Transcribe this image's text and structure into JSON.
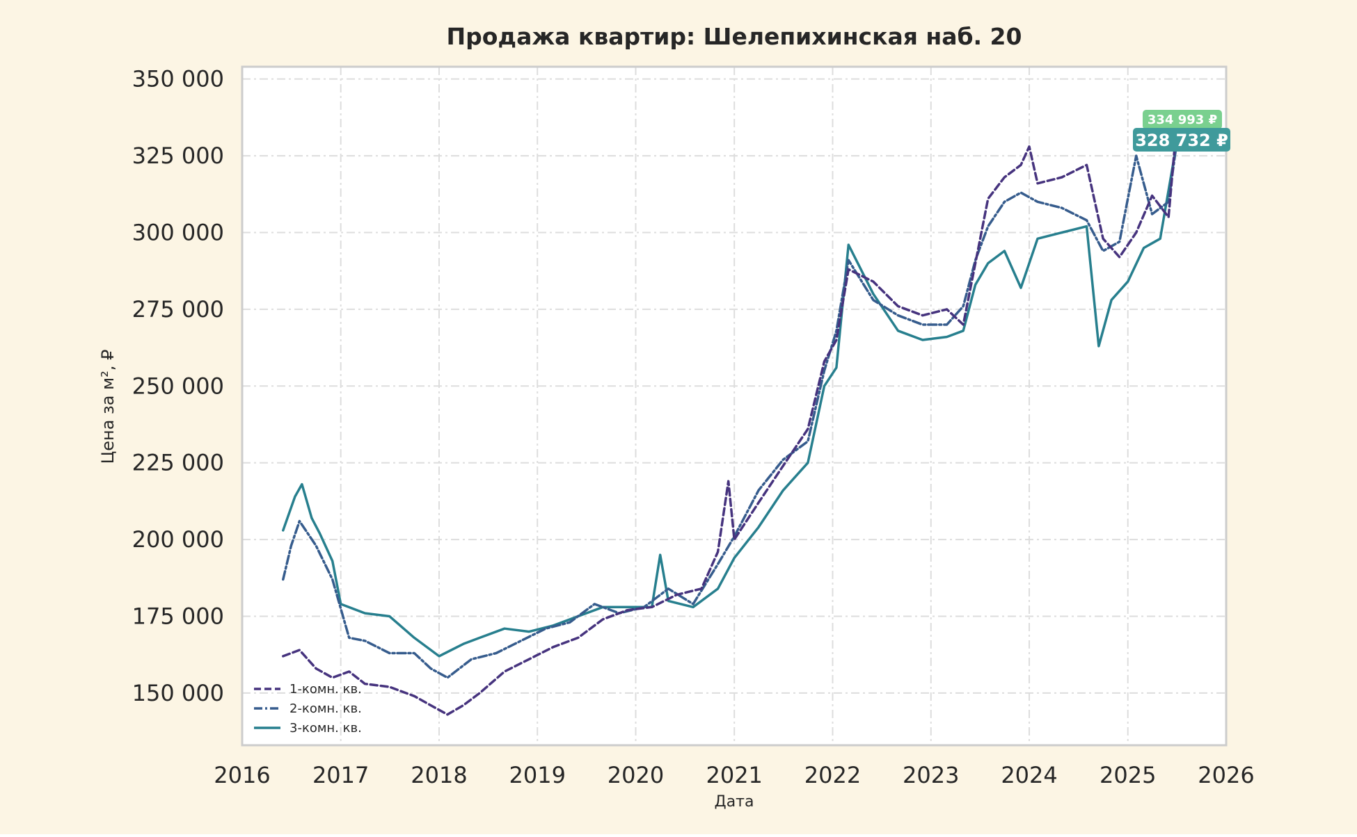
{
  "colors": {
    "page_bg": "#fcf5e4",
    "plot_bg": "#ffffff",
    "frame": "#cccccc",
    "grid": "#dddddd",
    "text": "#262626",
    "series_1": "#46337e",
    "series_2": "#365c8d",
    "series_3": "#277f8e",
    "badge_top": "#7ad08f",
    "badge_main": "#3f9a9b"
  },
  "chart_data": {
    "type": "line",
    "title": "Продажа квартир: Шелепихинская наб. 20",
    "xlabel": "Дата",
    "ylabel": "Цена за м², ₽",
    "xlim": [
      "2016-01-01",
      "2026-01-01"
    ],
    "ylim": [
      133000,
      354000
    ],
    "x_ticks": [
      "2016",
      "2017",
      "2018",
      "2019",
      "2020",
      "2021",
      "2022",
      "2023",
      "2024",
      "2025",
      "2026"
    ],
    "y_ticks": [
      "150 000",
      "175 000",
      "200 000",
      "225 000",
      "250 000",
      "275 000",
      "300 000",
      "325 000",
      "350 000"
    ],
    "y_tick_values": [
      150000,
      175000,
      200000,
      225000,
      250000,
      275000,
      300000,
      325000,
      350000
    ],
    "grid": true,
    "legend_position": "lower-left",
    "annotations": [
      "334 993 ₽",
      "328 732 ₽"
    ],
    "series": [
      {
        "name": "1-комн. кв.",
        "style": "dashed",
        "points": [
          [
            "2016-06-01",
            162000
          ],
          [
            "2016-08-01",
            164000
          ],
          [
            "2016-10-01",
            158000
          ],
          [
            "2016-12-01",
            155000
          ],
          [
            "2017-02-01",
            157000
          ],
          [
            "2017-04-01",
            153000
          ],
          [
            "2017-07-01",
            152000
          ],
          [
            "2017-10-01",
            149000
          ],
          [
            "2017-12-01",
            146000
          ],
          [
            "2018-02-01",
            143000
          ],
          [
            "2018-04-01",
            146000
          ],
          [
            "2018-06-01",
            150000
          ],
          [
            "2018-09-01",
            157000
          ],
          [
            "2018-12-01",
            161000
          ],
          [
            "2019-03-01",
            165000
          ],
          [
            "2019-06-01",
            168000
          ],
          [
            "2019-09-01",
            174000
          ],
          [
            "2019-12-01",
            177000
          ],
          [
            "2020-03-01",
            178000
          ],
          [
            "2020-06-01",
            182000
          ],
          [
            "2020-09-01",
            184000
          ],
          [
            "2020-11-01",
            196000
          ],
          [
            "2020-12-10",
            219000
          ],
          [
            "2021-01-01",
            200000
          ],
          [
            "2021-04-01",
            212000
          ],
          [
            "2021-07-01",
            224000
          ],
          [
            "2021-10-01",
            236000
          ],
          [
            "2021-12-01",
            258000
          ],
          [
            "2022-01-15",
            265000
          ],
          [
            "2022-03-01",
            288000
          ],
          [
            "2022-06-01",
            284000
          ],
          [
            "2022-09-01",
            276000
          ],
          [
            "2022-12-01",
            273000
          ],
          [
            "2023-03-01",
            275000
          ],
          [
            "2023-05-01",
            270000
          ],
          [
            "2023-06-15",
            290000
          ],
          [
            "2023-08-01",
            311000
          ],
          [
            "2023-10-01",
            318000
          ],
          [
            "2023-12-01",
            322000
          ],
          [
            "2024-01-01",
            328000
          ],
          [
            "2024-02-01",
            316000
          ],
          [
            "2024-05-01",
            318000
          ],
          [
            "2024-08-01",
            322000
          ],
          [
            "2024-10-01",
            298000
          ],
          [
            "2024-12-01",
            292000
          ],
          [
            "2025-02-01",
            300000
          ],
          [
            "2025-04-01",
            312000
          ],
          [
            "2025-06-01",
            305000
          ],
          [
            "2025-07-01",
            335000
          ]
        ]
      },
      {
        "name": "2-комн. кв.",
        "style": "dashdot",
        "points": [
          [
            "2016-06-01",
            187000
          ],
          [
            "2016-07-01",
            198000
          ],
          [
            "2016-08-01",
            206000
          ],
          [
            "2016-10-01",
            198000
          ],
          [
            "2016-12-01",
            187000
          ],
          [
            "2017-02-01",
            168000
          ],
          [
            "2017-04-01",
            167000
          ],
          [
            "2017-07-01",
            163000
          ],
          [
            "2017-10-01",
            163000
          ],
          [
            "2017-12-01",
            158000
          ],
          [
            "2018-02-01",
            155000
          ],
          [
            "2018-05-01",
            161000
          ],
          [
            "2018-08-01",
            163000
          ],
          [
            "2018-11-01",
            167000
          ],
          [
            "2019-02-01",
            171000
          ],
          [
            "2019-05-01",
            173000
          ],
          [
            "2019-08-01",
            179000
          ],
          [
            "2019-11-01",
            176000
          ],
          [
            "2020-02-01",
            178000
          ],
          [
            "2020-05-01",
            184000
          ],
          [
            "2020-08-01",
            179000
          ],
          [
            "2020-11-01",
            192000
          ],
          [
            "2021-01-01",
            201000
          ],
          [
            "2021-04-01",
            216000
          ],
          [
            "2021-07-01",
            226000
          ],
          [
            "2021-10-01",
            232000
          ],
          [
            "2021-12-01",
            255000
          ],
          [
            "2022-01-15",
            268000
          ],
          [
            "2022-03-01",
            291000
          ],
          [
            "2022-06-01",
            278000
          ],
          [
            "2022-09-01",
            273000
          ],
          [
            "2022-12-01",
            270000
          ],
          [
            "2023-03-01",
            270000
          ],
          [
            "2023-05-01",
            276000
          ],
          [
            "2023-06-15",
            291000
          ],
          [
            "2023-08-01",
            302000
          ],
          [
            "2023-10-01",
            310000
          ],
          [
            "2023-12-01",
            313000
          ],
          [
            "2024-02-01",
            310000
          ],
          [
            "2024-05-01",
            308000
          ],
          [
            "2024-08-01",
            304000
          ],
          [
            "2024-10-01",
            294000
          ],
          [
            "2024-12-01",
            297000
          ],
          [
            "2025-02-01",
            325000
          ],
          [
            "2025-04-01",
            306000
          ],
          [
            "2025-06-01",
            310000
          ],
          [
            "2025-07-01",
            329000
          ]
        ]
      },
      {
        "name": "3-комн. кв.",
        "style": "solid",
        "points": [
          [
            "2016-06-01",
            203000
          ],
          [
            "2016-07-15",
            214000
          ],
          [
            "2016-08-10",
            218000
          ],
          [
            "2016-09-15",
            207000
          ],
          [
            "2016-10-15",
            202000
          ],
          [
            "2016-12-01",
            193000
          ],
          [
            "2017-01-01",
            179000
          ],
          [
            "2017-04-01",
            176000
          ],
          [
            "2017-07-01",
            175000
          ],
          [
            "2017-10-01",
            168000
          ],
          [
            "2018-01-01",
            162000
          ],
          [
            "2018-04-01",
            166000
          ],
          [
            "2018-06-01",
            168000
          ],
          [
            "2018-09-01",
            171000
          ],
          [
            "2018-12-01",
            170000
          ],
          [
            "2019-03-01",
            172000
          ],
          [
            "2019-06-01",
            175000
          ],
          [
            "2019-09-01",
            178000
          ],
          [
            "2019-12-01",
            178000
          ],
          [
            "2020-03-01",
            178000
          ],
          [
            "2020-04-01",
            195000
          ],
          [
            "2020-05-01",
            180000
          ],
          [
            "2020-08-01",
            178000
          ],
          [
            "2020-11-01",
            184000
          ],
          [
            "2021-01-01",
            194000
          ],
          [
            "2021-04-01",
            204000
          ],
          [
            "2021-07-01",
            216000
          ],
          [
            "2021-10-01",
            225000
          ],
          [
            "2021-12-01",
            250000
          ],
          [
            "2022-01-15",
            256000
          ],
          [
            "2022-03-01",
            296000
          ],
          [
            "2022-06-01",
            280000
          ],
          [
            "2022-09-01",
            268000
          ],
          [
            "2022-12-01",
            265000
          ],
          [
            "2023-03-01",
            266000
          ],
          [
            "2023-05-01",
            268000
          ],
          [
            "2023-06-15",
            283000
          ],
          [
            "2023-08-01",
            290000
          ],
          [
            "2023-10-01",
            294000
          ],
          [
            "2023-12-01",
            282000
          ],
          [
            "2024-02-01",
            298000
          ],
          [
            "2024-05-01",
            300000
          ],
          [
            "2024-08-01",
            302000
          ],
          [
            "2024-09-15",
            263000
          ],
          [
            "2024-11-01",
            278000
          ],
          [
            "2025-01-01",
            284000
          ],
          [
            "2025-03-01",
            295000
          ],
          [
            "2025-05-01",
            298000
          ],
          [
            "2025-07-01",
            329000
          ]
        ]
      }
    ]
  }
}
